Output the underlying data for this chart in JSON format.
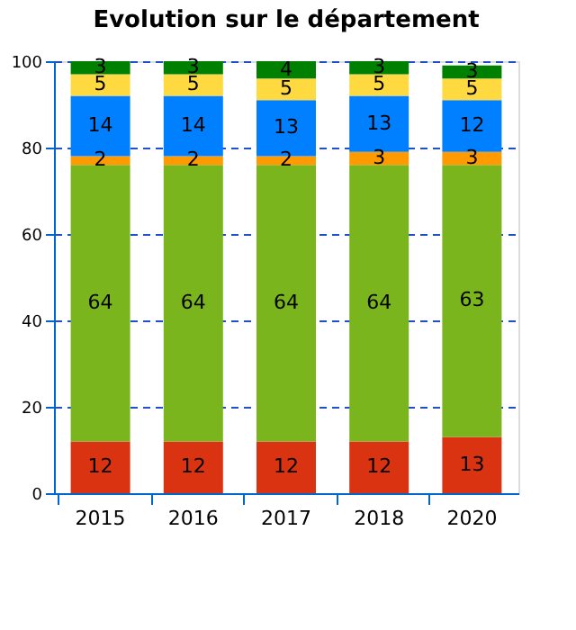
{
  "chart_data": {
    "type": "bar",
    "title": "Evolution sur le département",
    "stacked": true,
    "data_labels": true,
    "categories": [
      "2015",
      "2016",
      "2017",
      "2018",
      "2020"
    ],
    "series": [
      {
        "color": "#d93311",
        "values": [
          12,
          12,
          12,
          12,
          13
        ]
      },
      {
        "color": "#7ab51d",
        "values": [
          64,
          64,
          64,
          64,
          63
        ]
      },
      {
        "color": "#ff9a00",
        "values": [
          2,
          2,
          2,
          3,
          3
        ]
      },
      {
        "color": "#0080ff",
        "values": [
          14,
          14,
          13,
          13,
          12
        ]
      },
      {
        "color": "#ffd940",
        "values": [
          5,
          5,
          5,
          5,
          5
        ]
      },
      {
        "color": "#008000",
        "values": [
          3,
          3,
          4,
          3,
          3
        ]
      }
    ],
    "ylim": [
      0,
      100
    ],
    "yticks": [
      0,
      20,
      40,
      60,
      80,
      100
    ],
    "grid": "y"
  }
}
